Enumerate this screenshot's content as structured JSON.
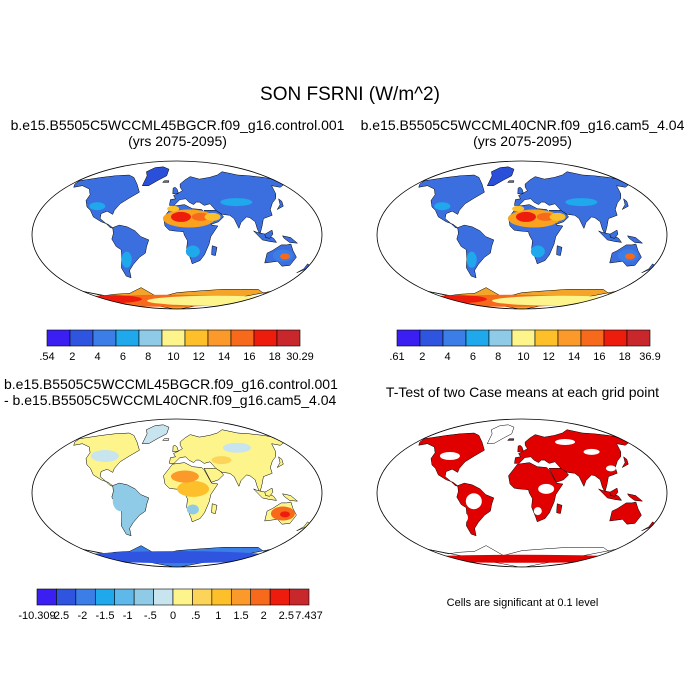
{
  "title": "SON FSRNI (W/m^2)",
  "panels": [
    {
      "line1": "b.e15.B5505C5WCCML45BGCR.f09_g16.control.001",
      "line2": "(yrs 2075-2095)",
      "map": "control-climatology",
      "colorbar": {
        "labels": [
          ".54",
          "2",
          "4",
          "6",
          "8",
          "10",
          "12",
          "14",
          "16",
          "18",
          "30.29"
        ],
        "colors": [
          "#3b1ff2",
          "#2f55e0",
          "#3b7ee8",
          "#1fa8ec",
          "#8fcbe6",
          "#fdf58c",
          "#fdbf2a",
          "#fb9a2a",
          "#f86a1b",
          "#ee1c0c",
          "#c8282b"
        ]
      }
    },
    {
      "line1": "b.e15.B5505C5WCCML40CNR.f09_g16.cam5_4.04",
      "line2": "(yrs 2075-2095)",
      "map": "cam5-climatology",
      "colorbar": {
        "labels": [
          ".61",
          "2",
          "4",
          "6",
          "8",
          "10",
          "12",
          "14",
          "16",
          "18",
          "36.9"
        ],
        "colors": [
          "#3b1ff2",
          "#2f55e0",
          "#3b7ee8",
          "#1fa8ec",
          "#8fcbe6",
          "#fdf58c",
          "#fdbf2a",
          "#fb9a2a",
          "#f86a1b",
          "#ee1c0c",
          "#c8282b"
        ]
      }
    },
    {
      "line1": "b.e15.B5505C5WCCML45BGCR.f09_g16.control.001",
      "line2": "- b.e15.B5505C5WCCML40CNR.f09_g16.cam5_4.04",
      "map": "difference",
      "colorbar": {
        "labels": [
          "-10.309",
          "-2.5",
          "-2",
          "-1.5",
          "-1",
          "-.5",
          "0",
          ".5",
          "1",
          "1.5",
          "2",
          "2.5",
          "7.437"
        ],
        "colors": [
          "#3b1ff2",
          "#2f55e0",
          "#3b7ee8",
          "#1fa8ec",
          "#5fb8ea",
          "#8fcbe6",
          "#c7e4ef",
          "#fdf58c",
          "#fdd45a",
          "#fdbf2a",
          "#fb9a2a",
          "#f86a1b",
          "#ee1c0c",
          "#c8282b"
        ]
      }
    },
    {
      "line1": "T-Test of two Case means at each grid point",
      "map": "significance",
      "note": "Cells are significant at 0.1 level"
    }
  ],
  "colors": {
    "significant": "#e00000",
    "outline": "#000000"
  }
}
